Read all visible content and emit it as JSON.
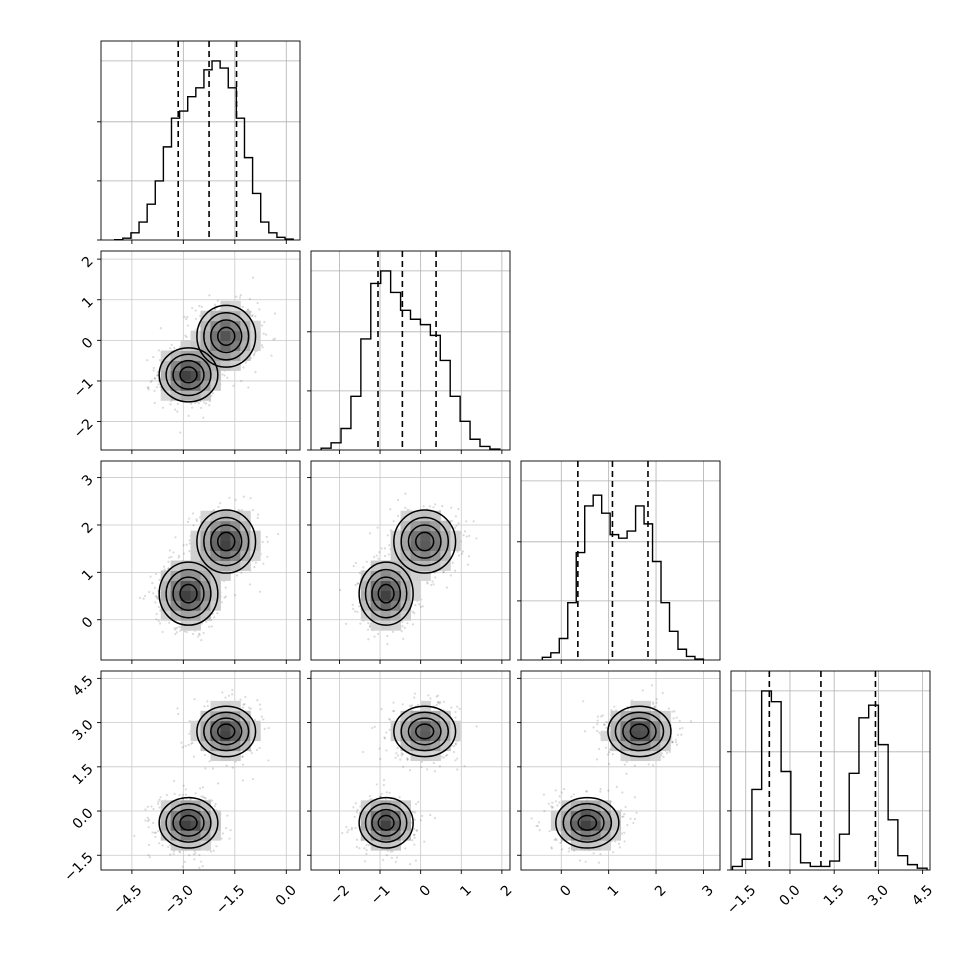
{
  "chart_data": {
    "type": "corner",
    "dims": 4,
    "axes": [
      {
        "range": [
          -5.4,
          0.4
        ],
        "ticks": [
          -4.5,
          -3.0,
          -1.5,
          0.0
        ],
        "tick_labels": [
          "−4.5",
          "−3.0",
          "−1.5",
          "0.0"
        ]
      },
      {
        "range": [
          -2.7,
          2.2
        ],
        "ticks": [
          -2,
          -1,
          0,
          1,
          2
        ],
        "tick_labels": [
          "−2",
          "−1",
          "0",
          "1",
          "2"
        ]
      },
      {
        "range": [
          -0.85,
          3.35
        ],
        "ticks": [
          0,
          1,
          2,
          3
        ],
        "tick_labels": [
          "0",
          "1",
          "2",
          "3"
        ]
      },
      {
        "range": [
          -2.0,
          4.75
        ],
        "ticks": [
          -1.5,
          0.0,
          1.5,
          3.0,
          4.5
        ],
        "tick_labels": [
          "−1.5",
          "0.0",
          "1.5",
          "3.0",
          "4.5"
        ]
      }
    ],
    "histograms": [
      {
        "quantiles": [
          -3.15,
          -2.25,
          -1.45
        ],
        "bin_edges_range": [
          -5.0,
          0.2
        ],
        "counts": [
          0.002,
          0.01,
          0.04,
          0.1,
          0.2,
          0.33,
          0.52,
          0.68,
          0.72,
          0.8,
          0.85,
          0.95,
          1.0,
          0.96,
          0.85,
          0.68,
          0.46,
          0.26,
          0.1,
          0.04,
          0.015,
          0.005
        ]
      },
      {
        "quantiles": [
          -1.05,
          -0.45,
          0.38
        ],
        "bin_edges_range": [
          -2.45,
          1.95
        ],
        "counts": [
          0.01,
          0.04,
          0.12,
          0.3,
          0.62,
          0.93,
          1.0,
          0.88,
          0.78,
          0.73,
          0.7,
          0.64,
          0.5,
          0.3,
          0.16,
          0.06,
          0.02,
          0.005
        ]
      },
      {
        "quantiles": [
          0.35,
          1.08,
          1.83
        ],
        "bin_edges_range": [
          -0.4,
          3.0
        ],
        "counts": [
          0.015,
          0.04,
          0.12,
          0.32,
          0.6,
          0.86,
          0.92,
          0.82,
          0.7,
          0.68,
          0.72,
          0.86,
          0.76,
          0.55,
          0.32,
          0.16,
          0.06,
          0.02,
          0.005
        ]
      },
      {
        "quantiles": [
          -0.7,
          1.05,
          2.9
        ],
        "bin_edges_range": [
          -1.95,
          4.65
        ],
        "counts": [
          0.02,
          0.06,
          0.45,
          1.0,
          0.94,
          0.55,
          0.2,
          0.04,
          0.02,
          0.02,
          0.05,
          0.2,
          0.54,
          0.85,
          0.92,
          0.7,
          0.28,
          0.08,
          0.03,
          0.01
        ]
      }
    ],
    "components": [
      {
        "weight": 0.5,
        "mean": [
          -2.85,
          -0.85,
          0.55,
          -0.4
        ],
        "sd": [
          0.45,
          0.35,
          0.35,
          0.45
        ]
      },
      {
        "weight": 0.5,
        "mean": [
          -1.75,
          0.1,
          1.65,
          2.7
        ],
        "sd": [
          0.45,
          0.4,
          0.35,
          0.45
        ]
      }
    ],
    "contour_levels": [
      "0.5σ",
      "1σ",
      "1.5σ",
      "2σ"
    ],
    "grid": true
  }
}
